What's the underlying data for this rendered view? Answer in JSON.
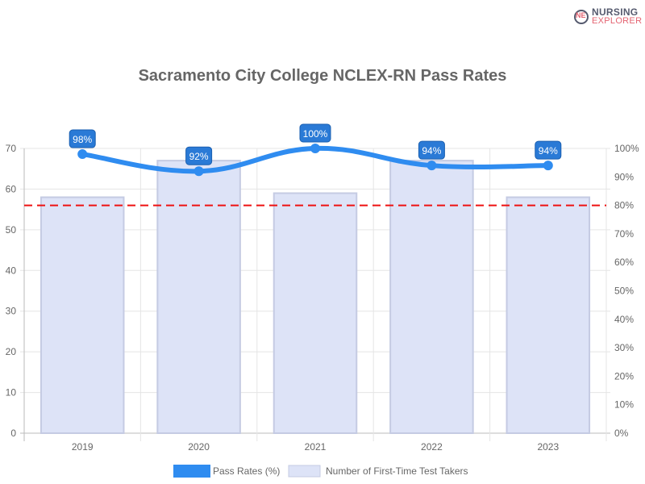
{
  "logo": {
    "line1": "NURSING",
    "line2": "EXPLORER"
  },
  "chart_data": {
    "type": "bar+line",
    "title": "Sacramento City College NCLEX-RN Pass Rates",
    "categories": [
      "2019",
      "2020",
      "2021",
      "2022",
      "2023"
    ],
    "series": [
      {
        "name": "Pass Rates (%)",
        "type": "line",
        "axis": "right",
        "values": [
          98,
          92,
          100,
          94,
          94
        ],
        "labels": [
          "98%",
          "92%",
          "100%",
          "94%",
          "94%"
        ],
        "color": "#2f8cf0"
      },
      {
        "name": "Number of First-Time Test Takers",
        "type": "bar",
        "axis": "left",
        "values": [
          58,
          67,
          59,
          67,
          58
        ],
        "color": "#dde3f7"
      }
    ],
    "left_axis": {
      "range": [
        0,
        70
      ],
      "ticks": [
        "0",
        "10",
        "20",
        "30",
        "40",
        "50",
        "60",
        "70"
      ]
    },
    "right_axis": {
      "range": [
        0,
        100
      ],
      "ticks": [
        "0%",
        "10%",
        "20%",
        "30%",
        "40%",
        "50%",
        "60%",
        "70%",
        "80%",
        "90%",
        "100%"
      ]
    },
    "threshold": {
      "value": 80,
      "axis": "right",
      "color": "#ee1111",
      "style": "dashed"
    },
    "grid": true,
    "legend": "bottom"
  }
}
